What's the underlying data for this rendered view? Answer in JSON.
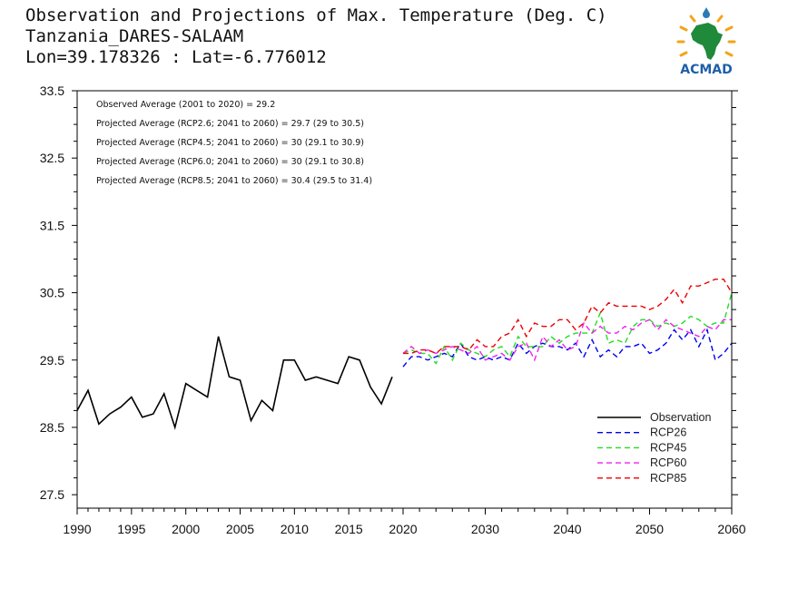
{
  "header": {
    "title_line1": "Observation and Projections of Max. Temperature (Deg. C)",
    "title_line2": "Tanzania_DARES-SALAAM",
    "title_line3": "Lon=39.178326 : Lat=-6.776012"
  },
  "logo": {
    "text": "ACMAD",
    "icon": "africa-map-logo"
  },
  "colors": {
    "Observation": "#000000",
    "RCP26": "#0000ee",
    "RCP45": "#22dd22",
    "RCP60": "#ee22ee",
    "RCP85": "#ee0000"
  },
  "chart_data": {
    "type": "line",
    "title": "Observation and Projections of Max. Temperature (Deg. C)",
    "xlabel": "",
    "ylabel": "",
    "ylim": [
      27.3,
      33.5
    ],
    "y_ticks": [
      "27.5",
      "28.5",
      "29.5",
      "30.5",
      "31.5",
      "32.5",
      "33.5"
    ],
    "x_ticks": [
      "1990",
      "1995",
      "2000",
      "2005",
      "2010",
      "2015",
      "2020",
      "2030",
      "2040",
      "2050",
      "2060"
    ],
    "x_axis_note": "piecewise scale: 1990-2020 and 2020-2060 segments",
    "grid": false,
    "legend_position": "bottom-right",
    "annotations": [
      "Observed Average (2001 to 2020) = 29.2",
      "Projected Average (RCP2.6; 2041 to 2060) = 29.7 (29 to 30.5)",
      "Projected Average (RCP4.5; 2041 to 2060) = 30 (29.1 to 30.9)",
      "Projected Average (RCP6.0; 2041 to 2060) = 30 (29.1 to 30.8)",
      "Projected Average (RCP8.5; 2041 to 2060) = 30.4 (29.5 to 31.4)"
    ],
    "series": [
      {
        "name": "Observation",
        "style": "solid",
        "x": [
          1990,
          1991,
          1992,
          1993,
          1994,
          1995,
          1996,
          1997,
          1998,
          1999,
          2000,
          2001,
          2002,
          2003,
          2004,
          2005,
          2006,
          2007,
          2008,
          2009,
          2010,
          2011,
          2012,
          2013,
          2014,
          2015,
          2016,
          2017,
          2018,
          2019
        ],
        "values": [
          28.75,
          29.05,
          28.55,
          28.7,
          28.8,
          28.95,
          28.65,
          28.7,
          29.0,
          28.5,
          29.15,
          29.05,
          28.95,
          29.85,
          29.25,
          29.2,
          28.6,
          28.9,
          28.75,
          29.5,
          29.5,
          29.2,
          29.25,
          29.2,
          29.15,
          29.55,
          29.5,
          29.1,
          28.85,
          29.25
        ]
      },
      {
        "name": "RCP26",
        "style": "dashed",
        "x": [
          2020,
          2021,
          2022,
          2023,
          2024,
          2025,
          2026,
          2027,
          2028,
          2029,
          2030,
          2031,
          2032,
          2033,
          2034,
          2035,
          2036,
          2037,
          2038,
          2039,
          2040,
          2041,
          2042,
          2043,
          2044,
          2045,
          2046,
          2047,
          2048,
          2049,
          2050,
          2051,
          2052,
          2053,
          2054,
          2055,
          2056,
          2057,
          2058,
          2059,
          2060
        ],
        "values": [
          29.4,
          29.55,
          29.55,
          29.5,
          29.55,
          29.6,
          29.55,
          29.75,
          29.55,
          29.5,
          29.55,
          29.5,
          29.55,
          29.5,
          29.75,
          29.6,
          29.7,
          29.75,
          29.7,
          29.7,
          29.65,
          29.75,
          29.55,
          29.8,
          29.55,
          29.65,
          29.55,
          29.7,
          29.7,
          29.75,
          29.6,
          29.65,
          29.75,
          29.95,
          29.8,
          29.95,
          29.7,
          29.95,
          29.5,
          29.6,
          29.75
        ]
      },
      {
        "name": "RCP45",
        "style": "dashed",
        "x": [
          2020,
          2021,
          2022,
          2023,
          2024,
          2025,
          2026,
          2027,
          2028,
          2029,
          2030,
          2031,
          2032,
          2033,
          2034,
          2035,
          2036,
          2037,
          2038,
          2039,
          2040,
          2041,
          2042,
          2043,
          2044,
          2045,
          2046,
          2047,
          2048,
          2049,
          2050,
          2051,
          2052,
          2053,
          2054,
          2055,
          2056,
          2057,
          2058,
          2059,
          2060
        ],
        "values": [
          29.6,
          29.65,
          29.6,
          29.6,
          29.45,
          29.7,
          29.5,
          29.75,
          29.65,
          29.6,
          29.55,
          29.65,
          29.7,
          29.55,
          29.85,
          29.7,
          29.7,
          29.7,
          29.85,
          29.75,
          29.85,
          29.9,
          29.9,
          29.9,
          30.2,
          29.75,
          29.8,
          29.75,
          30.0,
          30.1,
          30.1,
          30.0,
          30.05,
          30.0,
          30.05,
          30.15,
          30.1,
          30.0,
          30.05,
          30.05,
          30.5
        ]
      },
      {
        "name": "RCP60",
        "style": "dashed",
        "x": [
          2020,
          2021,
          2022,
          2023,
          2024,
          2025,
          2026,
          2027,
          2028,
          2029,
          2030,
          2031,
          2032,
          2033,
          2034,
          2035,
          2036,
          2037,
          2038,
          2039,
          2040,
          2041,
          2042,
          2043,
          2044,
          2045,
          2046,
          2047,
          2048,
          2049,
          2050,
          2051,
          2052,
          2053,
          2054,
          2055,
          2056,
          2057,
          2058,
          2059,
          2060
        ],
        "values": [
          29.6,
          29.7,
          29.6,
          29.65,
          29.6,
          29.65,
          29.7,
          29.65,
          29.6,
          29.7,
          29.5,
          29.55,
          29.6,
          29.5,
          29.7,
          29.75,
          29.5,
          29.85,
          29.7,
          29.8,
          29.65,
          29.7,
          30.05,
          29.9,
          30.0,
          29.9,
          29.9,
          30.0,
          29.95,
          30.05,
          30.1,
          29.95,
          30.1,
          30.0,
          29.95,
          29.9,
          29.85,
          30.0,
          29.95,
          30.1,
          30.1
        ]
      },
      {
        "name": "RCP85",
        "style": "dashed",
        "x": [
          2020,
          2021,
          2022,
          2023,
          2024,
          2025,
          2026,
          2027,
          2028,
          2029,
          2030,
          2031,
          2032,
          2033,
          2034,
          2035,
          2036,
          2037,
          2038,
          2039,
          2040,
          2041,
          2042,
          2043,
          2044,
          2045,
          2046,
          2047,
          2048,
          2049,
          2050,
          2051,
          2052,
          2053,
          2054,
          2055,
          2056,
          2057,
          2058,
          2059,
          2060
        ],
        "values": [
          29.6,
          29.6,
          29.65,
          29.65,
          29.6,
          29.7,
          29.7,
          29.7,
          29.65,
          29.8,
          29.7,
          29.7,
          29.85,
          29.9,
          30.1,
          29.85,
          30.05,
          30.0,
          30.0,
          30.1,
          30.1,
          29.95,
          30.05,
          30.3,
          30.2,
          30.35,
          30.3,
          30.3,
          30.3,
          30.3,
          30.25,
          30.3,
          30.4,
          30.55,
          30.35,
          30.6,
          30.6,
          30.65,
          30.7,
          30.7,
          30.5
        ]
      }
    ]
  }
}
